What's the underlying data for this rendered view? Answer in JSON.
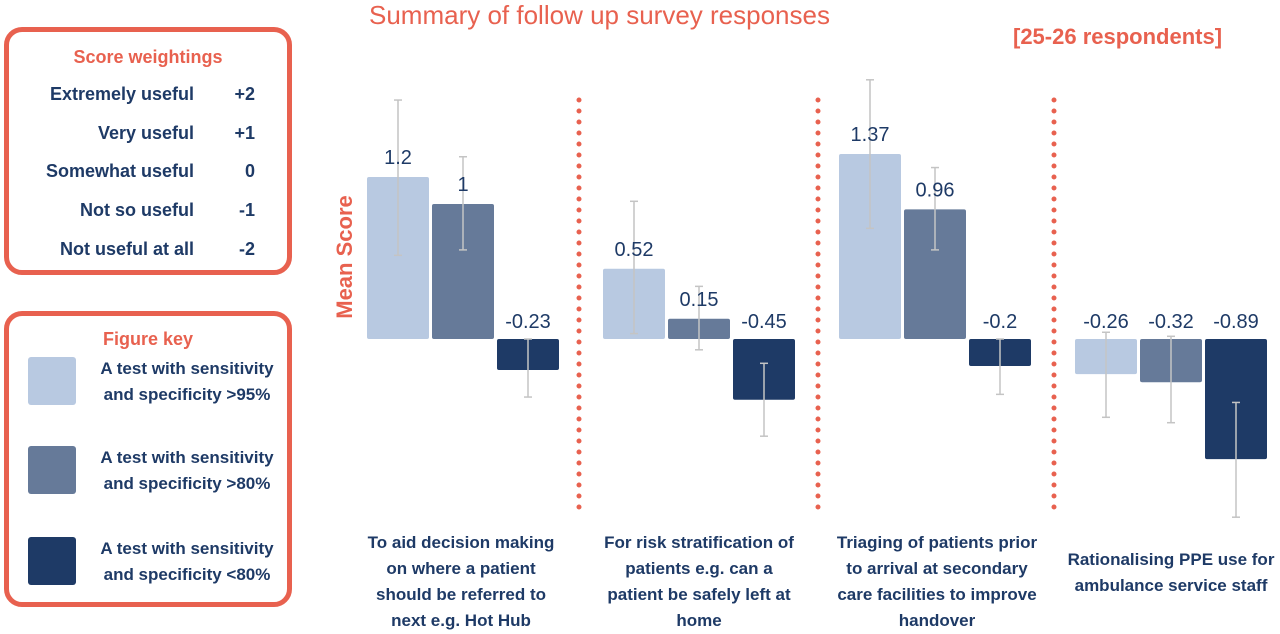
{
  "weights": {
    "title": "Score weightings",
    "rows": [
      {
        "label": "Extremely useful",
        "value": "+2"
      },
      {
        "label": "Very useful",
        "value": "+1"
      },
      {
        "label": "Somewhat useful",
        "value": "0"
      },
      {
        "label": "Not so useful",
        "value": "-1"
      },
      {
        "label": "Not useful at all",
        "value": "-2"
      }
    ]
  },
  "key": {
    "title": "Figure key",
    "items": [
      {
        "label": "A test with sensitivity and specificity >95%",
        "color": "#b8c9e1"
      },
      {
        "label": "A test with sensitivity and specificity >80%",
        "color": "#667a99"
      },
      {
        "label": "A test with sensitivity and specificity <80%",
        "color": "#1e3a66"
      }
    ]
  },
  "chart_data": {
    "type": "bar",
    "title": "Summary of follow up survey responses",
    "subtitle": "[25-26 respondents]",
    "ylabel": "Mean Score",
    "xlabel": "",
    "grid": false,
    "legend": "left",
    "categories": [
      "To aid decision making on where a patient should be referred to next e.g. Hot Hub",
      "For risk stratification of patients e.g. can a patient be safely left at home",
      "Triaging of patients prior to arrival at secondary care facilities to improve handover",
      "Rationalising PPE use for ambulance service staff"
    ],
    "series": [
      {
        "name": "A test with sensitivity and specificity >95%",
        "color": "#b8c9e1",
        "values": [
          1.2,
          0.52,
          1.37,
          -0.26
        ],
        "error_low": [
          0.62,
          0.04,
          0.82,
          -0.58
        ],
        "error_high": [
          1.77,
          1.02,
          1.92,
          0.05
        ],
        "labels": [
          "1.2",
          "0.52",
          "1.37",
          "-0.26"
        ]
      },
      {
        "name": "A test with sensitivity and specificity >80%",
        "color": "#667a99",
        "values": [
          1.0,
          0.15,
          0.96,
          -0.32
        ],
        "error_low": [
          0.66,
          -0.08,
          0.66,
          -0.62
        ],
        "error_high": [
          1.35,
          0.39,
          1.27,
          0.02
        ],
        "labels": [
          "1",
          "0.15",
          "0.96",
          "-0.32"
        ]
      },
      {
        "name": "A test with sensitivity and specificity <80%",
        "color": "#1e3a66",
        "values": [
          -0.23,
          -0.45,
          -0.2,
          -0.89
        ],
        "error_low": [
          -0.43,
          -0.72,
          -0.41,
          -1.32
        ],
        "error_high": [
          0.0,
          -0.18,
          0.0,
          -0.47
        ],
        "labels": [
          "-0.23",
          "-0.45",
          "-0.2",
          "-0.89"
        ]
      }
    ],
    "ylim": [
      -1.3,
      2.0
    ],
    "separator_color": "#e8614f"
  }
}
